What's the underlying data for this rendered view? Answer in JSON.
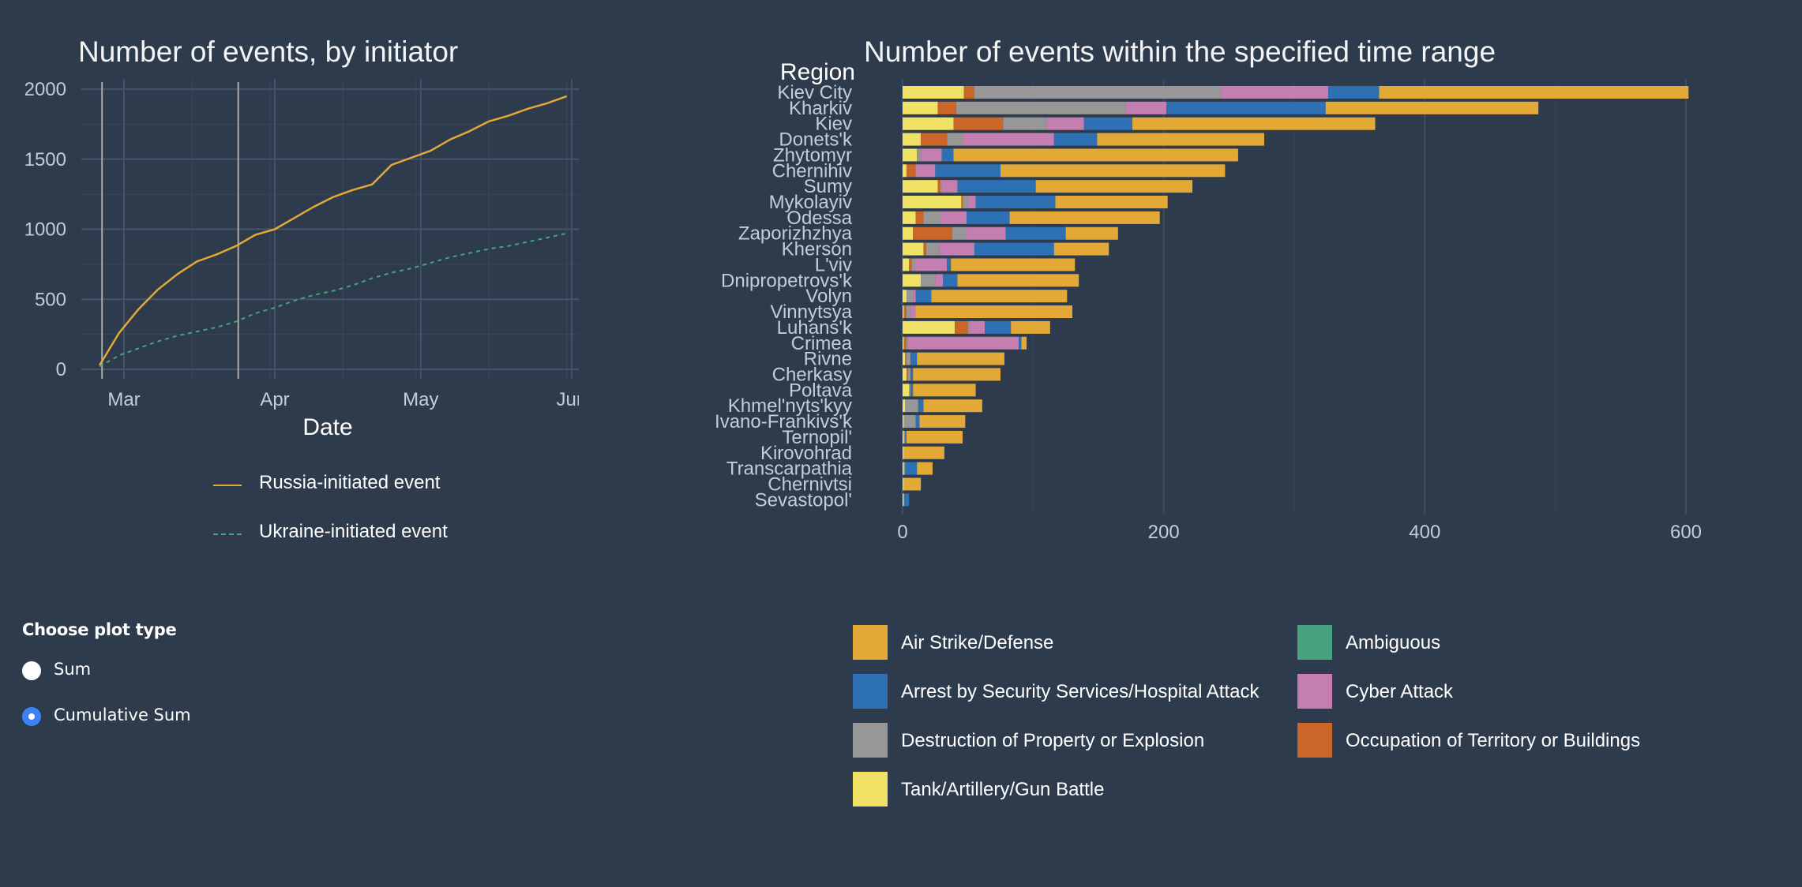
{
  "chart_data": [
    {
      "type": "line",
      "title": "Number of events, by initiator",
      "xlabel": "Date",
      "ylabel": "",
      "x_ticks": [
        "Mar",
        "Apr",
        "May",
        "Jun"
      ],
      "ylim": [
        0,
        2000
      ],
      "y_ticks": [
        0,
        500,
        1000,
        1500,
        2000
      ],
      "vlines": [
        "2022-02-24",
        "2022-03-24"
      ],
      "legend": "bottom",
      "series": [
        {
          "name": "Russia-initiated event",
          "color": "#e3a937",
          "style": "solid",
          "x": [
            "2022-02-24",
            "2022-02-28",
            "2022-03-04",
            "2022-03-08",
            "2022-03-12",
            "2022-03-16",
            "2022-03-20",
            "2022-03-24",
            "2022-03-28",
            "2022-04-01",
            "2022-04-05",
            "2022-04-09",
            "2022-04-13",
            "2022-04-17",
            "2022-04-21",
            "2022-04-25",
            "2022-04-29",
            "2022-05-03",
            "2022-05-07",
            "2022-05-11",
            "2022-05-15",
            "2022-05-19",
            "2022-05-23",
            "2022-05-27",
            "2022-05-31"
          ],
          "values": [
            30,
            260,
            430,
            570,
            680,
            770,
            820,
            880,
            960,
            1000,
            1080,
            1160,
            1230,
            1280,
            1320,
            1460,
            1510,
            1560,
            1640,
            1700,
            1770,
            1810,
            1860,
            1900,
            1950
          ]
        },
        {
          "name": "Ukraine-initiated event",
          "color": "#46a37e",
          "style": "dashed",
          "x": [
            "2022-02-24",
            "2022-02-28",
            "2022-03-04",
            "2022-03-08",
            "2022-03-12",
            "2022-03-16",
            "2022-03-20",
            "2022-03-24",
            "2022-03-28",
            "2022-04-01",
            "2022-04-05",
            "2022-04-09",
            "2022-04-13",
            "2022-04-17",
            "2022-04-21",
            "2022-04-25",
            "2022-04-29",
            "2022-05-03",
            "2022-05-07",
            "2022-05-11",
            "2022-05-15",
            "2022-05-19",
            "2022-05-23",
            "2022-05-27",
            "2022-05-31"
          ],
          "values": [
            20,
            100,
            150,
            200,
            240,
            270,
            300,
            340,
            400,
            440,
            490,
            530,
            560,
            600,
            650,
            690,
            720,
            760,
            800,
            830,
            860,
            880,
            910,
            940,
            970
          ]
        }
      ]
    },
    {
      "type": "bar",
      "orientation": "horizontal",
      "stacked": true,
      "title": "Number of events within the specified time range",
      "ylabel": "Region",
      "xlabel": "",
      "xlim": [
        0,
        630
      ],
      "x_ticks": [
        0,
        200,
        400,
        600
      ],
      "legend": "bottom",
      "categories": [
        "Kiev City",
        "Kharkiv",
        "Kiev",
        "Donets'k",
        "Zhytomyr",
        "Chernihiv",
        "Sumy",
        "Mykolayiv",
        "Odessa",
        "Zaporizhzhya",
        "Kherson",
        "L'viv",
        "Dnipropetrovs'k",
        "Volyn",
        "Vinnytsya",
        "Luhans'k",
        "Crimea",
        "Rivne",
        "Cherkasy",
        "Poltava",
        "Khmel'nyts'kyy",
        "Ivano-Frankivs'k",
        "Ternopil'",
        "Kirovohrad",
        "Transcarpathia",
        "Chernivtsi",
        "Sevastopol'"
      ],
      "series": [
        {
          "name": "Tank/Artillery/Gun Battle",
          "color": "#efe264",
          "values": [
            47,
            27,
            39,
            14,
            11,
            3,
            27,
            45,
            10,
            8,
            16,
            5,
            14,
            3,
            1,
            40,
            1,
            2,
            3,
            5,
            2,
            1,
            1,
            1,
            1,
            1,
            1
          ]
        },
        {
          "name": "Occupation of Territory or Buildings",
          "color": "#ca6628",
          "values": [
            8,
            14,
            38,
            20,
            0,
            7,
            2,
            1,
            6,
            30,
            2,
            2,
            0,
            0,
            2,
            10,
            2,
            1,
            1,
            0,
            0,
            0,
            0,
            0,
            0,
            0,
            0
          ]
        },
        {
          "name": "Destruction of Property or Explosion",
          "color": "#979797",
          "values": [
            189,
            130,
            33,
            12,
            3,
            0,
            1,
            4,
            13,
            11,
            10,
            3,
            11,
            5,
            3,
            1,
            1,
            3,
            2,
            1,
            10,
            9,
            1,
            0,
            1,
            0,
            0
          ]
        },
        {
          "name": "Cyber Attack",
          "color": "#c47fb0",
          "values": [
            82,
            31,
            29,
            70,
            16,
            15,
            12,
            6,
            20,
            30,
            27,
            24,
            6,
            2,
            4,
            12,
            85,
            0,
            0,
            0,
            0,
            0,
            0,
            0,
            0,
            0,
            0
          ]
        },
        {
          "name": "Arrest by Security Services/Hospital Attack",
          "color": "#2e70b4",
          "values": [
            39,
            122,
            37,
            33,
            9,
            50,
            60,
            61,
            33,
            46,
            61,
            3,
            11,
            12,
            0,
            20,
            2,
            5,
            2,
            2,
            4,
            3,
            1,
            0,
            9,
            0,
            4
          ]
        },
        {
          "name": "Ambiguous",
          "color": "#46a37e",
          "values": [
            0,
            0,
            0,
            0,
            0,
            0,
            0,
            0,
            0,
            0,
            0,
            0,
            0,
            0,
            0,
            0,
            0,
            0,
            0,
            0,
            0,
            0,
            0,
            0,
            0,
            0,
            0
          ]
        },
        {
          "name": "Air Strike/Defense",
          "color": "#e3a937",
          "values": [
            237,
            163,
            186,
            128,
            218,
            172,
            120,
            86,
            115,
            40,
            42,
            95,
            93,
            104,
            120,
            30,
            4,
            67,
            67,
            48,
            45,
            35,
            43,
            31,
            12,
            13,
            0
          ]
        }
      ]
    }
  ],
  "controls": {
    "header": "Choose plot type",
    "options": [
      {
        "label": "Sum",
        "selected": false
      },
      {
        "label": "Cumulative Sum",
        "selected": true
      }
    ]
  }
}
